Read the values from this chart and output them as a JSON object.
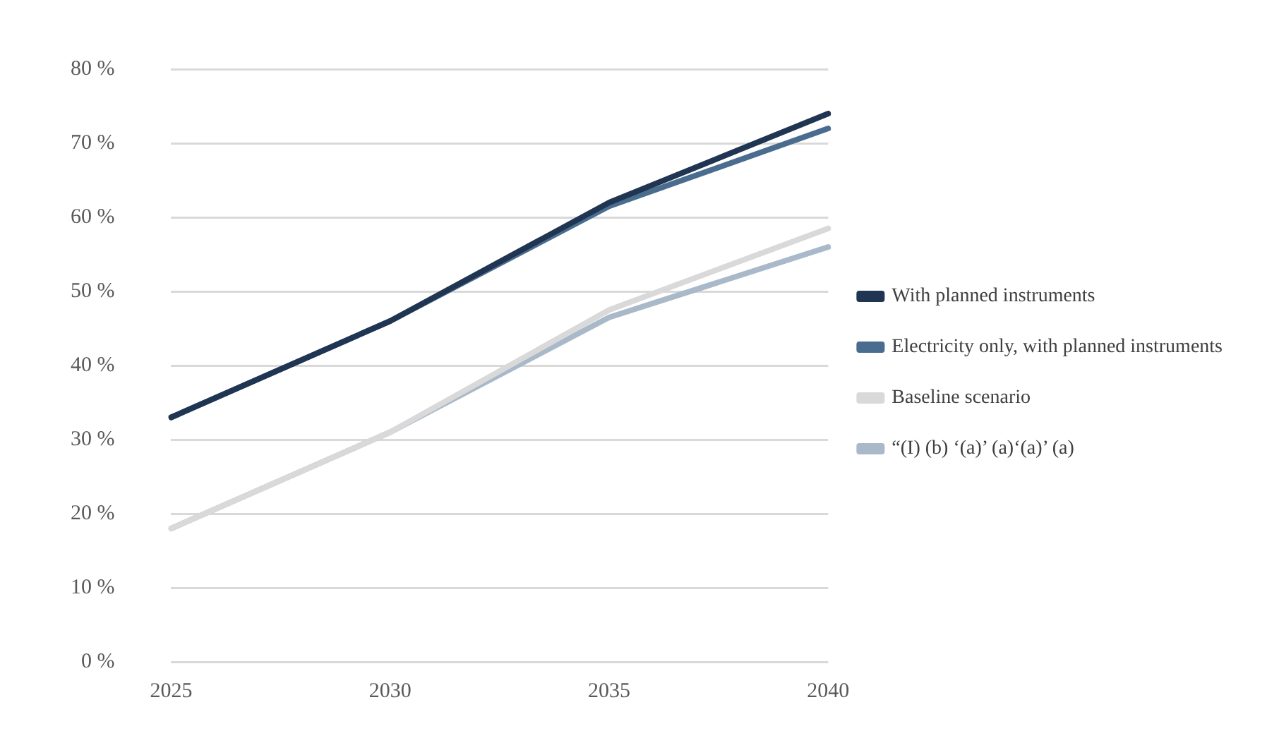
{
  "chart_data": {
    "type": "line",
    "categories": [
      "2025",
      "2030",
      "2035",
      "2040"
    ],
    "series": [
      {
        "name": "With planned instruments",
        "color": "#1f3552",
        "values": [
          33,
          46,
          62,
          74
        ]
      },
      {
        "name": "Electricity only, with planned instruments",
        "color": "#4a6d8f",
        "values": [
          33,
          46,
          61.5,
          72
        ]
      },
      {
        "name": "Baseline scenario",
        "color": "#d9d9d9",
        "values": [
          18,
          31,
          47.5,
          58.5
        ]
      },
      {
        "name": "“(I) (b) ‘(a)’ (a)‘(a)’ (a)",
        "color": "#a9b9c9",
        "values": [
          18,
          31,
          46.5,
          56
        ]
      }
    ],
    "ylim": [
      0,
      80
    ],
    "yticks": [
      {
        "value": 0,
        "label": "0 %"
      },
      {
        "value": 10,
        "label": "10 %"
      },
      {
        "value": 20,
        "label": "20 %"
      },
      {
        "value": 30,
        "label": "30 %"
      },
      {
        "value": 40,
        "label": "40 %"
      },
      {
        "value": 50,
        "label": "50 %"
      },
      {
        "value": 60,
        "label": "60 %"
      },
      {
        "value": 70,
        "label": "70 %"
      },
      {
        "value": 80,
        "label": "80 %"
      }
    ],
    "grid": "y",
    "legend": "right",
    "marker": "none",
    "line_style": "solid"
  }
}
